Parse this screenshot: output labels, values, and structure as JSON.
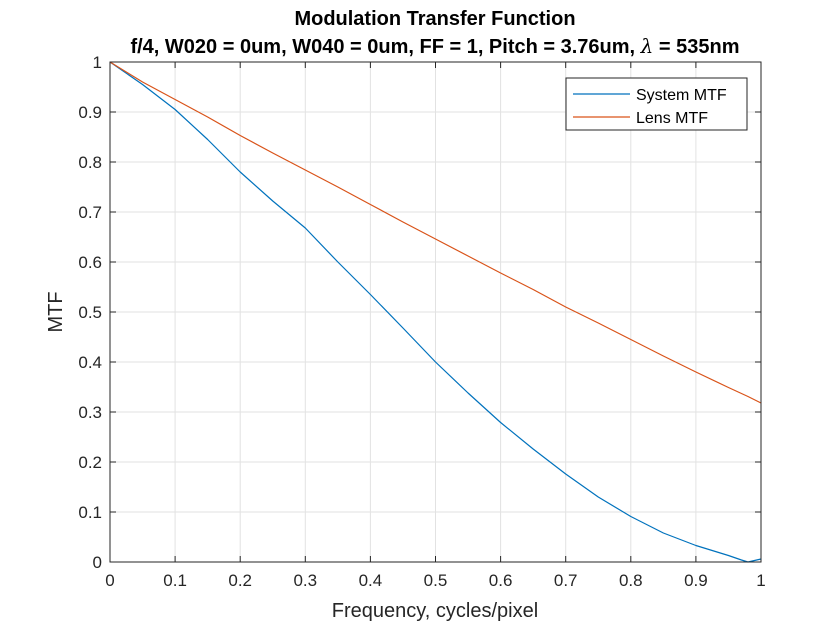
{
  "chart_data": {
    "type": "line",
    "title": "Modulation Transfer Function",
    "subtitle_parts": [
      "f/4, W020 = 0um, W040 = 0um, FF = 1, Pitch = 3.76um, ",
      "λ",
      " = 535nm"
    ],
    "xlabel": "Frequency, cycles/pixel",
    "ylabel": "MTF",
    "xlim": [
      0,
      1
    ],
    "ylim": [
      0,
      1
    ],
    "x_ticks": [
      0,
      0.1,
      0.2,
      0.3,
      0.4,
      0.5,
      0.6,
      0.7,
      0.8,
      0.9,
      1
    ],
    "x_tick_labels": [
      "0",
      "0.1",
      "0.2",
      "0.3",
      "0.4",
      "0.5",
      "0.6",
      "0.7",
      "0.8",
      "0.9",
      "1"
    ],
    "y_ticks": [
      0,
      0.1,
      0.2,
      0.3,
      0.4,
      0.5,
      0.6,
      0.7,
      0.8,
      0.9,
      1
    ],
    "y_tick_labels": [
      "0",
      "0.1",
      "0.2",
      "0.3",
      "0.4",
      "0.5",
      "0.6",
      "0.7",
      "0.8",
      "0.9",
      "1"
    ],
    "grid": true,
    "legend_position": "top-right",
    "x": [
      0,
      0.05,
      0.1,
      0.15,
      0.2,
      0.25,
      0.3,
      0.35,
      0.4,
      0.45,
      0.5,
      0.55,
      0.6,
      0.65,
      0.7,
      0.75,
      0.8,
      0.85,
      0.9,
      0.95,
      0.97,
      0.98,
      1.0
    ],
    "series": [
      {
        "name": "System MTF",
        "color": "#0072BD",
        "values": [
          1.0,
          0.955,
          0.905,
          0.845,
          0.78,
          0.722,
          0.668,
          0.6,
          0.535,
          0.468,
          0.4,
          0.338,
          0.279,
          0.226,
          0.176,
          0.13,
          0.091,
          0.058,
          0.033,
          0.013,
          0.004,
          0.0,
          0.006
        ]
      },
      {
        "name": "Lens MTF",
        "color": "#D95319",
        "values": [
          1.0,
          0.96,
          0.925,
          0.89,
          0.853,
          0.818,
          0.784,
          0.75,
          0.715,
          0.68,
          0.646,
          0.612,
          0.578,
          0.545,
          0.51,
          0.478,
          0.445,
          0.412,
          0.38,
          0.349,
          0.337,
          0.331,
          0.318
        ]
      }
    ]
  }
}
